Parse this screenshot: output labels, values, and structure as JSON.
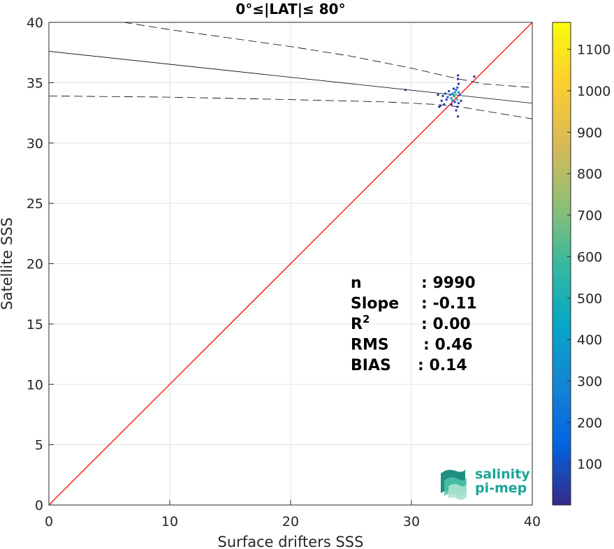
{
  "chart_data": {
    "type": "scatter",
    "title": "0°≤|LAT|≤ 80°",
    "xlabel": "Surface drifters SSS",
    "ylabel": "Satellite SSS",
    "xlim": [
      0,
      40
    ],
    "ylim": [
      0,
      40
    ],
    "xticks": [
      "0",
      "10",
      "20",
      "30",
      "40"
    ],
    "yticks": [
      "0",
      "5",
      "10",
      "15",
      "20",
      "25",
      "30",
      "35",
      "40"
    ],
    "grid": true,
    "one_to_one_line": {
      "color": "#ff0000",
      "from": [
        0,
        0
      ],
      "to": [
        40,
        40
      ]
    },
    "regression_line": {
      "color": "#000000",
      "style": "solid",
      "from": [
        0,
        37.6
      ],
      "to": [
        40,
        33.3
      ]
    },
    "confidence_upper": {
      "color": "#000000",
      "style": "dashed",
      "points": [
        [
          6.2,
          40
        ],
        [
          10,
          39.4
        ],
        [
          15,
          38.7
        ],
        [
          20,
          38.0
        ],
        [
          25,
          37.2
        ],
        [
          30,
          36.2
        ],
        [
          33.5,
          35.4
        ],
        [
          36,
          34.9
        ],
        [
          40,
          34.6
        ]
      ]
    },
    "confidence_lower": {
      "color": "#000000",
      "style": "dashed",
      "points": [
        [
          0,
          33.9
        ],
        [
          10,
          33.8
        ],
        [
          20,
          33.6
        ],
        [
          28,
          33.4
        ],
        [
          32,
          33.2
        ],
        [
          34,
          33.0
        ],
        [
          37,
          32.5
        ],
        [
          40,
          32.0
        ]
      ]
    },
    "density_points": [
      [
        33.6,
        33.8,
        900
      ],
      [
        33.7,
        34.0,
        700
      ],
      [
        33.8,
        33.6,
        600
      ],
      [
        33.5,
        33.9,
        400
      ],
      [
        33.4,
        34.1,
        300
      ],
      [
        33.9,
        34.2,
        250
      ],
      [
        33.3,
        33.7,
        200
      ],
      [
        33.2,
        34.0,
        180
      ],
      [
        33.7,
        34.4,
        150
      ],
      [
        33.8,
        34.6,
        120
      ],
      [
        33.6,
        33.4,
        140
      ],
      [
        33.0,
        33.8,
        110
      ],
      [
        32.8,
        34.1,
        90
      ],
      [
        32.9,
        33.6,
        80
      ],
      [
        33.1,
        34.3,
        70
      ],
      [
        33.9,
        33.3,
        60
      ],
      [
        34.0,
        34.0,
        100
      ],
      [
        33.5,
        34.5,
        50
      ],
      [
        32.6,
        33.9,
        40
      ],
      [
        32.5,
        33.5,
        30
      ],
      [
        32.7,
        33.2,
        25
      ],
      [
        33.3,
        33.2,
        35
      ],
      [
        33.8,
        33.0,
        20
      ],
      [
        34.1,
        33.5,
        30
      ],
      [
        32.4,
        33.1,
        15
      ],
      [
        33.9,
        34.9,
        15
      ],
      [
        33.85,
        35.3,
        8
      ],
      [
        33.85,
        35.6,
        5
      ],
      [
        33.85,
        32.2,
        5
      ],
      [
        35.2,
        35.5,
        5
      ],
      [
        29.5,
        34.4,
        3
      ],
      [
        32.2,
        34.0,
        10
      ],
      [
        32.3,
        33.0,
        8
      ],
      [
        33.7,
        32.7,
        10
      ],
      [
        33.4,
        33.5,
        260
      ],
      [
        33.6,
        34.2,
        320
      ]
    ],
    "colorbar": {
      "min": 1,
      "max": 1165,
      "ticks": [
        "100",
        "200",
        "300",
        "400",
        "500",
        "600",
        "700",
        "800",
        "900",
        "1000",
        "1100"
      ],
      "colormap": "parula",
      "colors": [
        "#352a87",
        "#0363e1",
        "#1485d4",
        "#06a7c6",
        "#38b99e",
        "#92bf73",
        "#d9ba56",
        "#fcce2e",
        "#f9fb0e"
      ]
    },
    "stats": [
      {
        "label": "n",
        "value": ": 9990"
      },
      {
        "label": "Slope",
        "value": ": -0.11"
      },
      {
        "label": "R",
        "sup": "2",
        "value": ": 0.00"
      },
      {
        "label": "RMS",
        "value": ": 0.46"
      },
      {
        "label": "BIAS",
        "value": ": 0.14"
      }
    ]
  },
  "logo": {
    "line1": "salinity",
    "line2": "pi-mep"
  }
}
